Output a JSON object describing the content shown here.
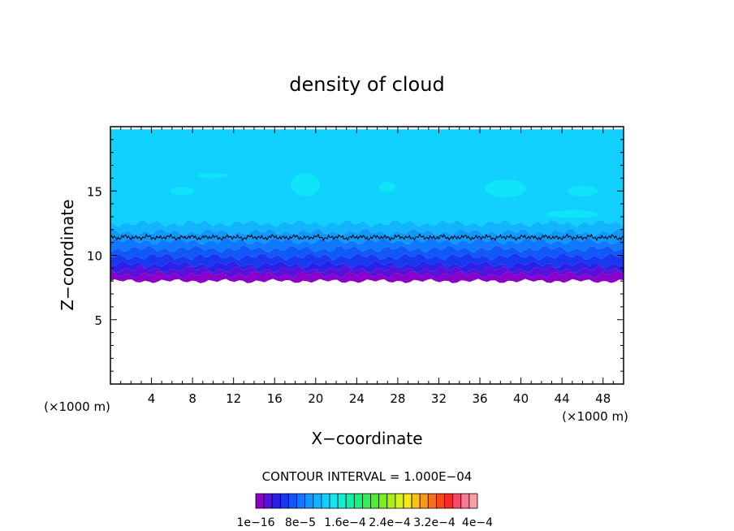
{
  "chart_data": {
    "type": "heatmap",
    "title": "density of cloud",
    "xlabel": "X−coordinate",
    "ylabel": "Z−coordinate",
    "x_unit": "(×1000 m)",
    "z_unit": "(×1000 m)",
    "xlim": [
      0,
      50
    ],
    "ylim": [
      0,
      20
    ],
    "x_ticks": [
      4,
      8,
      12,
      16,
      20,
      24,
      28,
      32,
      36,
      40,
      44,
      48
    ],
    "y_ticks": [
      5,
      10,
      15
    ],
    "contour_interval_text": "CONTOUR INTERVAL = 1.000E−04",
    "cloud_base_z": 8.0,
    "cloud_top_z": 19.8,
    "contour_line_z": 11.4,
    "colorbar": {
      "colors": [
        "#8a00c8",
        "#5a10d8",
        "#2a20e8",
        "#1838f0",
        "#1058f8",
        "#1078ff",
        "#1098ff",
        "#10b4ff",
        "#10d0ff",
        "#10e8f8",
        "#10f0d0",
        "#10f0a8",
        "#18f080",
        "#30f058",
        "#48f030",
        "#78f020",
        "#a8f018",
        "#d8f018",
        "#f8e818",
        "#f8c018",
        "#f89818",
        "#f87018",
        "#f84818",
        "#f82828",
        "#f84868",
        "#f87898",
        "#f8a0a0"
      ],
      "labels": [
        "1e−16",
        "8e−5",
        "1.6e−4",
        "2.4e−4",
        "3.2e−4",
        "4e−4"
      ]
    },
    "bands": [
      {
        "z0": 8.0,
        "z1": 8.5,
        "color": "#8a00c8"
      },
      {
        "z0": 8.5,
        "z1": 8.9,
        "color": "#5a10d8"
      },
      {
        "z0": 8.9,
        "z1": 9.3,
        "color": "#2a20e8"
      },
      {
        "z0": 9.3,
        "z1": 9.9,
        "color": "#1838f0"
      },
      {
        "z0": 9.9,
        "z1": 10.5,
        "color": "#1058f8"
      },
      {
        "z0": 10.5,
        "z1": 11.1,
        "color": "#1078ff"
      },
      {
        "z0": 11.1,
        "z1": 11.8,
        "color": "#1098ff"
      },
      {
        "z0": 11.8,
        "z1": 12.5,
        "color": "#10b4ff"
      },
      {
        "z0": 12.5,
        "z1": 19.8,
        "color": "#10d0ff"
      }
    ]
  }
}
